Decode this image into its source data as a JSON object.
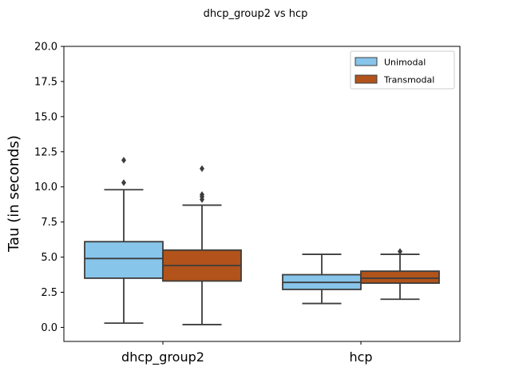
{
  "chart_data": {
    "type": "box",
    "title": "dhcp_group2 vs hcp",
    "xlabel": "",
    "ylabel": "Tau (in seconds)",
    "ylim": [
      -1.0,
      20.0
    ],
    "yticks": [
      "0.0",
      "2.5",
      "5.0",
      "7.5",
      "10.0",
      "12.5",
      "15.0",
      "17.5",
      "20.0"
    ],
    "categories": [
      "dhcp_group2",
      "hcp"
    ],
    "grid": false,
    "legend_position": "top-right",
    "series": [
      {
        "name": "Unimodal",
        "color": "#87c5ea",
        "boxes": [
          {
            "whisker_low": 0.3,
            "q1": 3.5,
            "median": 4.9,
            "q3": 6.1,
            "whisker_high": 9.8,
            "outliers": [
              10.3,
              11.9
            ]
          },
          {
            "whisker_low": 1.7,
            "q1": 2.7,
            "median": 3.2,
            "q3": 3.75,
            "whisker_high": 5.2,
            "outliers": []
          }
        ]
      },
      {
        "name": "Transmodal",
        "color": "#b1531a",
        "boxes": [
          {
            "whisker_low": 0.2,
            "q1": 3.3,
            "median": 4.4,
            "q3": 5.5,
            "whisker_high": 8.7,
            "outliers": [
              9.1,
              9.3,
              9.45,
              11.3
            ]
          },
          {
            "whisker_low": 2.0,
            "q1": 3.15,
            "median": 3.5,
            "q3": 4.0,
            "whisker_high": 5.2,
            "outliers": [
              5.4
            ]
          }
        ]
      }
    ]
  }
}
